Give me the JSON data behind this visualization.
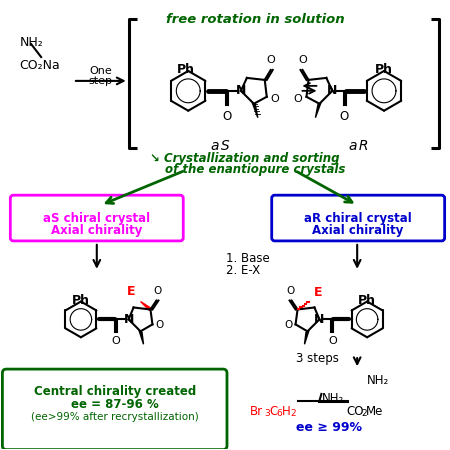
{
  "bg_color": "#ffffff",
  "green_dark": "#006400",
  "magenta": "#FF00FF",
  "blue_box": "#0000CD",
  "red": "#FF0000",
  "black": "#000000",
  "top_text": "free rotation in solution",
  "cryst_text1": "↘ Crystallization and sorting",
  "cryst_text2": "of the enantiopure crystals",
  "aS_box1": "aS chiral crystal",
  "aS_box2": "Axial chirality",
  "aR_box1": "aR chiral crystal",
  "aR_box2": "Axial chirality",
  "base_text1": "1. Base",
  "base_text2": "2. E-X",
  "green_box1": "Central chirality created",
  "green_box2": "ee = 87-96 %",
  "green_box3": "(ee>99% after recrystallization)",
  "steps_text": "3 steps",
  "nh2_text": "NH₂",
  "ee_text": "ee ≥ 99%",
  "start_nh2": "NH₂",
  "start_co2na": "CO₂Na",
  "one_step": "One\nstep",
  "aS_label": "aS",
  "aR_label": "aR"
}
